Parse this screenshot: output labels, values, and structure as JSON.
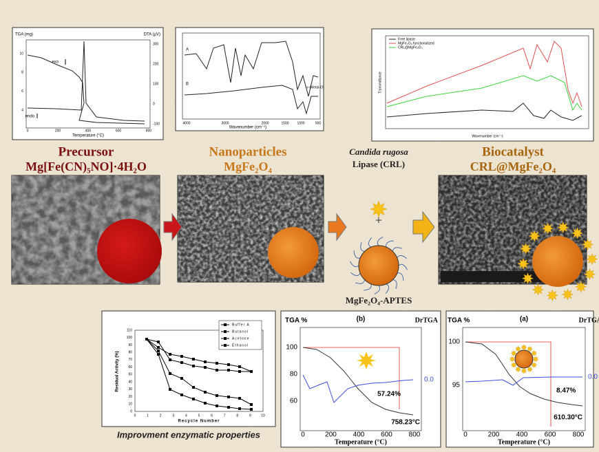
{
  "tga_dta_panel": {
    "y_label_left": "TGA (mg)",
    "y_label_right": "DTA (µV)",
    "left_ticks": [
      "10",
      "8",
      "6",
      "4"
    ],
    "right_ticks": [
      "300",
      "200",
      "100",
      "0",
      "-100"
    ],
    "exo": "exo",
    "endo": "endo",
    "x_ticks": [
      "0",
      "200",
      "400",
      "600",
      "800"
    ],
    "x_label": "Temperature (°C)"
  },
  "ftir_panel": {
    "curve_labels": [
      "A",
      "B"
    ],
    "x_ticks": [
      "4000",
      "3000",
      "2000",
      "1500",
      "1000",
      "500"
    ],
    "x_label": "Wavenumber (cm⁻¹)",
    "band_label": "ν (Metal-O)"
  },
  "ftir_compare_panel": {
    "legend": [
      "Free lipase",
      "MgFe₂O₄ functionalized",
      "CRL@MgFe₂O₄"
    ],
    "y_label": "Transmittance",
    "x_label": "Wavenumber (cm⁻¹)"
  },
  "stages": {
    "precursor": {
      "title": "Precursor",
      "formula": "Mg[Fe(CN)₅NO]·4H₂O"
    },
    "nanoparticles": {
      "title": "Nanoparticles",
      "formula": "MgFe₂O₄"
    },
    "lipase": {
      "species": "Candida rugosa",
      "name": "Lipase (CRL)",
      "plus": "+",
      "support": "MgFe₂O₄-APTES"
    },
    "biocatalyst": {
      "title": "Biocatalyst",
      "formula": "CRL@MgFe₂O₄"
    }
  },
  "reuse_panel": {
    "legend": [
      "Buffer A",
      "Butanol",
      "Acetone",
      "Ethanol"
    ],
    "y_label": "Residual Activity (%)",
    "x_label": "Recycle Number",
    "y_ticks": [
      "0",
      "10",
      "20",
      "30",
      "40",
      "50",
      "60",
      "70",
      "80",
      "90",
      "100",
      "110"
    ],
    "x_ticks": [
      "0",
      "1",
      "2",
      "3",
      "4",
      "5",
      "6",
      "7",
      "8",
      "9",
      "10"
    ],
    "caption": "Improvment enzymatic properties"
  },
  "tga_b": {
    "y_label": "TGA %",
    "panel_label": "(b)",
    "y2_label": "DrTGA",
    "y_ticks": [
      "100",
      "80",
      "60"
    ],
    "y2_tick": "0.0",
    "loss": "57.24%",
    "temperature": "758.23°C",
    "x_ticks": [
      "0",
      "200",
      "400",
      "600",
      "800"
    ],
    "x_label": "Temperature (°C)"
  },
  "tga_a": {
    "y_label": "TGA %",
    "panel_label": "(a)",
    "y2_label": "DrTGA",
    "y_ticks": [
      "100",
      "95"
    ],
    "y2_tick": "0.0",
    "loss": "8.47%",
    "temperature": "610.30°C",
    "x_ticks": [
      "0",
      "200",
      "400",
      "600",
      "800"
    ],
    "x_label": "Temperature (°C)"
  }
}
